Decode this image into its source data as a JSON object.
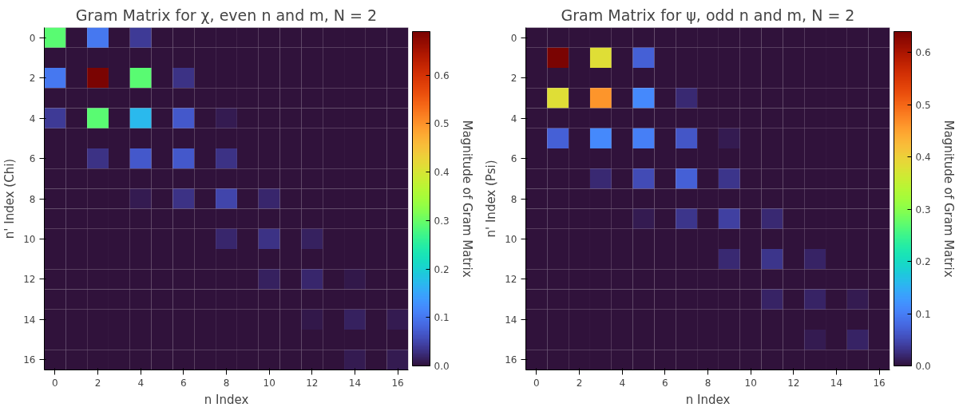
{
  "chart_data": [
    {
      "type": "heatmap",
      "title": "Gram Matrix for χ, even n and m, N = 2",
      "xlabel": "n Index",
      "ylabel": "n' Index (Chi)",
      "clabel": "Magnitude of Gram Matrix",
      "categories": [
        "0",
        null,
        "2",
        null,
        "4",
        null,
        "6",
        null,
        "8",
        null,
        "10",
        null,
        "12",
        null,
        "14",
        null,
        "16"
      ],
      "y_categories": [
        "0",
        null,
        "2",
        null,
        "4",
        null,
        "6",
        null,
        "8",
        null,
        "10",
        null,
        "12",
        null,
        "14",
        null,
        "16"
      ],
      "clim": [
        0,
        0.69
      ],
      "cticks": [
        {
          "value": 0,
          "label": "0.0"
        },
        0.1,
        0.2,
        0.3,
        0.4,
        0.5,
        0.6
      ],
      "cells": [
        [
          0.29,
          0,
          0.1,
          0,
          0.04,
          0,
          0,
          0,
          0,
          0,
          0,
          0,
          0,
          0,
          0,
          0,
          0
        ],
        [
          0,
          0,
          0,
          0,
          0,
          0,
          0,
          0,
          0,
          0,
          0,
          0,
          0,
          0,
          0,
          0,
          0
        ],
        [
          0.1,
          0,
          0.69,
          0,
          0.29,
          0,
          0.03,
          0,
          0,
          0,
          0,
          0,
          0,
          0,
          0,
          0,
          0
        ],
        [
          0,
          0,
          0,
          0,
          0,
          0,
          0,
          0,
          0,
          0,
          0,
          0,
          0,
          0,
          0,
          0,
          0
        ],
        [
          0.04,
          0,
          0.29,
          0,
          0.17,
          0,
          0.07,
          0,
          0.01,
          0,
          0,
          0,
          0,
          0,
          0,
          0,
          0
        ],
        [
          0,
          0,
          0,
          0,
          0,
          0,
          0,
          0,
          0,
          0,
          0,
          0,
          0,
          0,
          0,
          0,
          0
        ],
        [
          0,
          0,
          0.03,
          0,
          0.07,
          0,
          0.07,
          0,
          0.03,
          0,
          0,
          0,
          0,
          0,
          0,
          0,
          0
        ],
        [
          0,
          0,
          0,
          0,
          0,
          0,
          0,
          0,
          0,
          0,
          0,
          0,
          0,
          0,
          0,
          0,
          0
        ],
        [
          0,
          0,
          0,
          0,
          0.01,
          0,
          0.03,
          0,
          0.05,
          0,
          0.02,
          0,
          0,
          0,
          0,
          0,
          0
        ],
        [
          0,
          0,
          0,
          0,
          0,
          0,
          0,
          0,
          0,
          0,
          0,
          0,
          0,
          0,
          0,
          0,
          0
        ],
        [
          0,
          0,
          0,
          0,
          0,
          0,
          0,
          0,
          0.02,
          0,
          0.03,
          0,
          0.015,
          0,
          0,
          0,
          0
        ],
        [
          0,
          0,
          0,
          0,
          0,
          0,
          0,
          0,
          0,
          0,
          0,
          0,
          0,
          0,
          0,
          0,
          0
        ],
        [
          0,
          0,
          0,
          0,
          0,
          0,
          0,
          0,
          0,
          0,
          0.015,
          0,
          0.02,
          0,
          0.008,
          0,
          0
        ],
        [
          0,
          0,
          0,
          0,
          0,
          0,
          0,
          0,
          0,
          0,
          0,
          0,
          0,
          0,
          0,
          0,
          0
        ],
        [
          0,
          0,
          0,
          0,
          0,
          0,
          0,
          0,
          0,
          0,
          0,
          0,
          0.008,
          0,
          0.015,
          0,
          0.01
        ],
        [
          0,
          0,
          0,
          0,
          0,
          0,
          0,
          0,
          0,
          0,
          0,
          0,
          0,
          0,
          0,
          0,
          0
        ],
        [
          0,
          0,
          0,
          0,
          0,
          0,
          0,
          0,
          0,
          0,
          0,
          0,
          0,
          0,
          0.01,
          0,
          0.01
        ]
      ]
    },
    {
      "type": "heatmap",
      "title": "Gram Matrix for ψ, odd n and m, N = 2",
      "xlabel": "n Index",
      "ylabel": "n' Index (Psi)",
      "clabel": "Magnitude of Gram Matrix",
      "categories": [
        "0",
        null,
        "2",
        null,
        "4",
        null,
        "6",
        null,
        "8",
        null,
        "10",
        null,
        "12",
        null,
        "14",
        null,
        "16"
      ],
      "y_categories": [
        "0",
        null,
        "2",
        null,
        "4",
        null,
        "6",
        null,
        "8",
        null,
        "10",
        null,
        "12",
        null,
        "14",
        null,
        "16"
      ],
      "clim": [
        0,
        0.64
      ],
      "cticks": [
        {
          "value": 0,
          "label": "0.0"
        },
        0.1,
        0.2,
        0.3,
        0.4,
        0.5,
        0.6
      ],
      "cells": [
        [
          0,
          0,
          0,
          0,
          0,
          0,
          0,
          0,
          0,
          0,
          0,
          0,
          0,
          0,
          0,
          0,
          0
        ],
        [
          0,
          0.64,
          0,
          0.38,
          0,
          0.07,
          0,
          0,
          0,
          0,
          0,
          0,
          0,
          0,
          0,
          0,
          0
        ],
        [
          0,
          0,
          0,
          0,
          0,
          0,
          0,
          0,
          0,
          0,
          0,
          0,
          0,
          0,
          0,
          0,
          0
        ],
        [
          0,
          0.38,
          0,
          0.46,
          0,
          0.11,
          0,
          0.02,
          0,
          0,
          0,
          0,
          0,
          0,
          0,
          0,
          0
        ],
        [
          0,
          0,
          0,
          0,
          0,
          0,
          0,
          0,
          0,
          0,
          0,
          0,
          0,
          0,
          0,
          0,
          0
        ],
        [
          0,
          0.07,
          0,
          0.11,
          0,
          0.1,
          0,
          0.06,
          0,
          0.008,
          0,
          0,
          0,
          0,
          0,
          0,
          0
        ],
        [
          0,
          0,
          0,
          0,
          0,
          0,
          0,
          0,
          0,
          0,
          0,
          0,
          0,
          0,
          0,
          0,
          0
        ],
        [
          0,
          0,
          0,
          0.02,
          0,
          0.05,
          0,
          0.07,
          0,
          0.03,
          0,
          0,
          0,
          0,
          0,
          0,
          0
        ],
        [
          0,
          0,
          0,
          0,
          0,
          0,
          0,
          0,
          0,
          0,
          0,
          0,
          0,
          0,
          0,
          0,
          0
        ],
        [
          0,
          0,
          0,
          0,
          0,
          0.008,
          0,
          0.03,
          0,
          0.04,
          0,
          0.02,
          0,
          0,
          0,
          0,
          0
        ],
        [
          0,
          0,
          0,
          0,
          0,
          0,
          0,
          0,
          0,
          0,
          0,
          0,
          0,
          0,
          0,
          0,
          0
        ],
        [
          0,
          0,
          0,
          0,
          0,
          0,
          0,
          0,
          0,
          0.02,
          0,
          0.03,
          0,
          0.015,
          0,
          0,
          0
        ],
        [
          0,
          0,
          0,
          0,
          0,
          0,
          0,
          0,
          0,
          0,
          0,
          0,
          0,
          0,
          0,
          0,
          0
        ],
        [
          0,
          0,
          0,
          0,
          0,
          0,
          0,
          0,
          0,
          0,
          0,
          0.015,
          0,
          0.015,
          0,
          0.008,
          0
        ],
        [
          0,
          0,
          0,
          0,
          0,
          0,
          0,
          0,
          0,
          0,
          0,
          0,
          0,
          0,
          0,
          0,
          0
        ],
        [
          0,
          0,
          0,
          0,
          0,
          0,
          0,
          0,
          0,
          0,
          0,
          0,
          0,
          0.008,
          0,
          0.015,
          0
        ],
        [
          0,
          0,
          0,
          0,
          0,
          0,
          0,
          0,
          0,
          0,
          0,
          0,
          0,
          0,
          0,
          0,
          0
        ]
      ]
    }
  ]
}
